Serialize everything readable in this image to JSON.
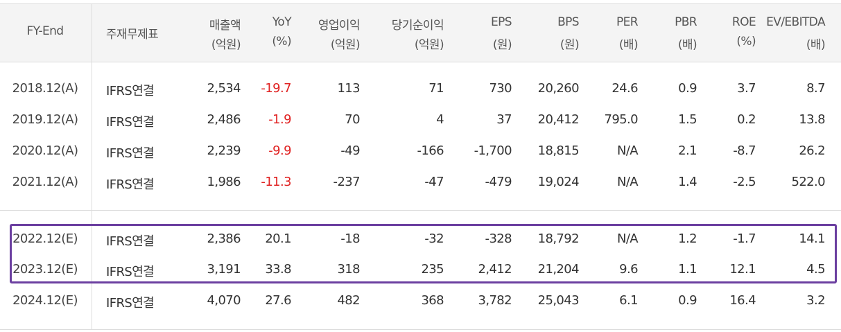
{
  "headers": [
    {
      "line1": "FY-End",
      "line2": ""
    },
    {
      "line1": "주재무제표",
      "line2": ""
    },
    {
      "line1": "매출액",
      "line2": "(억원)"
    },
    {
      "line1": "YoY",
      "line2": "(%)"
    },
    {
      "line1": "영업이익",
      "line2": "(억원)"
    },
    {
      "line1": "당기순이익",
      "line2": "(억원)"
    },
    {
      "line1": "EPS",
      "line2": "(원)"
    },
    {
      "line1": "BPS",
      "line2": "(원)"
    },
    {
      "line1": "PER",
      "line2": "(배)"
    },
    {
      "line1": "PBR",
      "line2": "(배)"
    },
    {
      "line1": "ROE",
      "line2": "(%)"
    },
    {
      "line1": "EV/EBITDA",
      "line2": "(배)"
    }
  ],
  "rows": [
    {
      "fy": "2018.12(A)",
      "basis": "IFRS연결",
      "sales": "2,534",
      "yoy": "-19.7",
      "op": "113",
      "net": "71",
      "eps": "730",
      "bps": "20,260",
      "per": "24.6",
      "pbr": "0.9",
      "roe": "3.7",
      "ev": "8.7"
    },
    {
      "fy": "2019.12(A)",
      "basis": "IFRS연결",
      "sales": "2,486",
      "yoy": "-1.9",
      "op": "70",
      "net": "4",
      "eps": "37",
      "bps": "20,412",
      "per": "795.0",
      "pbr": "1.5",
      "roe": "0.2",
      "ev": "13.8"
    },
    {
      "fy": "2020.12(A)",
      "basis": "IFRS연결",
      "sales": "2,239",
      "yoy": "-9.9",
      "op": "-49",
      "net": "-166",
      "eps": "-1,700",
      "bps": "18,815",
      "per": "N/A",
      "pbr": "2.1",
      "roe": "-8.7",
      "ev": "26.2"
    },
    {
      "fy": "2021.12(A)",
      "basis": "IFRS연결",
      "sales": "1,986",
      "yoy": "-11.3",
      "op": "-237",
      "net": "-47",
      "eps": "-479",
      "bps": "19,024",
      "per": "N/A",
      "pbr": "1.4",
      "roe": "-2.5",
      "ev": "522.0"
    },
    {
      "fy": "2022.12(E)",
      "basis": "IFRS연결",
      "sales": "2,386",
      "yoy": "20.1",
      "op": "-18",
      "net": "-32",
      "eps": "-328",
      "bps": "18,792",
      "per": "N/A",
      "pbr": "1.2",
      "roe": "-1.7",
      "ev": "14.1"
    },
    {
      "fy": "2023.12(E)",
      "basis": "IFRS연결",
      "sales": "3,191",
      "yoy": "33.8",
      "op": "318",
      "net": "235",
      "eps": "2,412",
      "bps": "21,204",
      "per": "9.6",
      "pbr": "1.1",
      "roe": "12.1",
      "ev": "4.5"
    },
    {
      "fy": "2024.12(E)",
      "basis": "IFRS연결",
      "sales": "4,070",
      "yoy": "27.6",
      "op": "482",
      "net": "368",
      "eps": "3,782",
      "bps": "25,043",
      "per": "6.1",
      "pbr": "0.9",
      "roe": "16.4",
      "ev": "3.2"
    }
  ],
  "colors": {
    "negative_yoy": "#e02020",
    "highlight_border": "#6b3fa0",
    "header_bg": "#f4f4f4"
  }
}
